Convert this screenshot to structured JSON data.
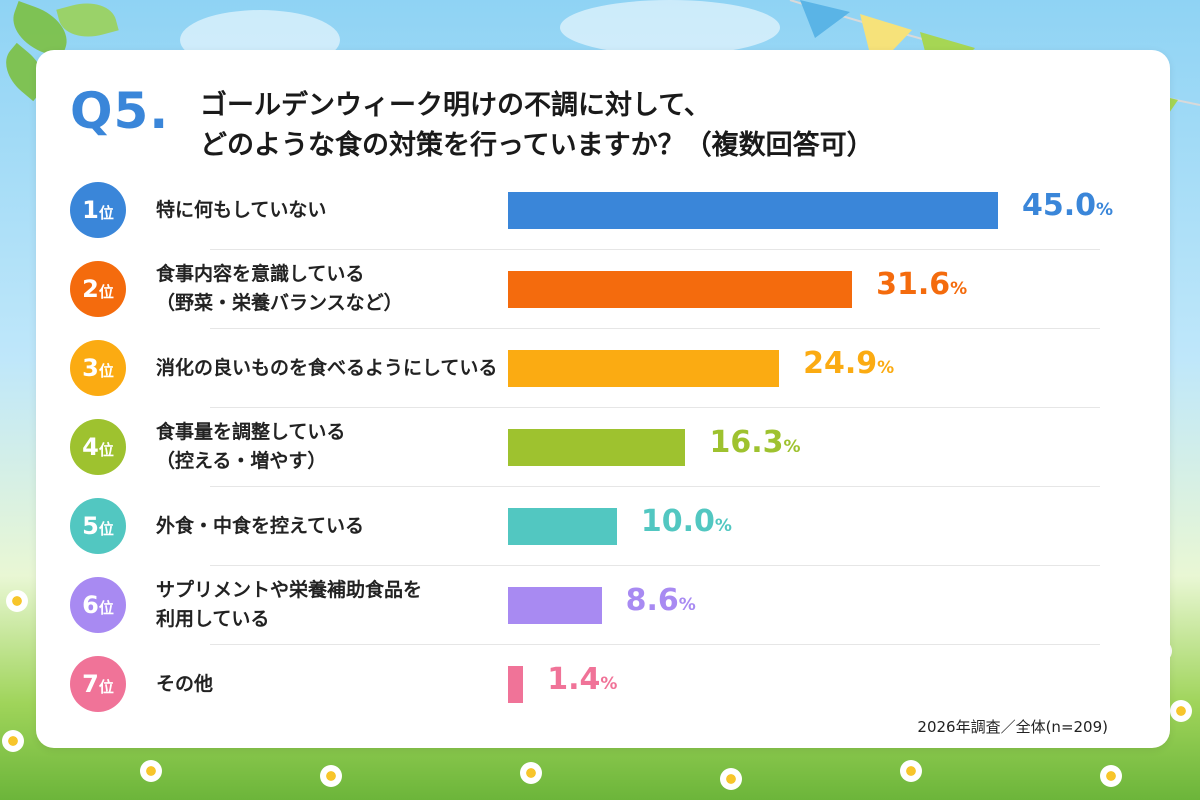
{
  "question": {
    "number": "Q5.",
    "line1": "ゴールデンウィーク明けの不調に対して、",
    "line2": "どのような食の対策を行っていますか？（複数回答可）"
  },
  "rank_suffix": "位",
  "percent_sign": "%",
  "chart_data": {
    "type": "bar",
    "orientation": "horizontal",
    "categories": [
      "特に何もしていない",
      "食事内容を意識している（野菜・栄養バランスなど）",
      "消化の良いものを食べるようにしている",
      "食事量を調整している（控える・増やす）",
      "外食・中食を控えている",
      "サプリメントや栄養補助食品を利用している",
      "その他"
    ],
    "values": [
      45.0,
      31.6,
      24.9,
      16.3,
      10.0,
      8.6,
      1.4
    ],
    "value_labels": [
      "45.0",
      "31.6",
      "24.9",
      "16.3",
      "10.0",
      "8.6",
      "1.4"
    ],
    "colors": [
      "#3a86d9",
      "#f46b0d",
      "#fbab12",
      "#9ec22f",
      "#52c7c1",
      "#a88af2",
      "#f07398"
    ],
    "xlim": [
      0,
      45
    ]
  },
  "rows": [
    {
      "rank": "1",
      "line1": "特に何もしていない",
      "line2": ""
    },
    {
      "rank": "2",
      "line1": "食事内容を意識している",
      "line2": "（野菜・栄養バランスなど）"
    },
    {
      "rank": "3",
      "line1": "消化の良いものを食べるようにしている",
      "line2": ""
    },
    {
      "rank": "4",
      "line1": "食事量を調整している",
      "line2": "（控える・増やす）"
    },
    {
      "rank": "5",
      "line1": "外食・中食を控えている",
      "line2": ""
    },
    {
      "rank": "6",
      "line1": "サプリメントや栄養補助食品を",
      "line2": "利用している"
    },
    {
      "rank": "7",
      "line1": "その他",
      "line2": ""
    }
  ],
  "footnote": "2026年調査／全体(n=209)",
  "flag_colors": [
    "#5ab4e6",
    "#f6e27a",
    "#a6d654",
    "#5ab4e6",
    "#f6e27a",
    "#a6d654"
  ]
}
